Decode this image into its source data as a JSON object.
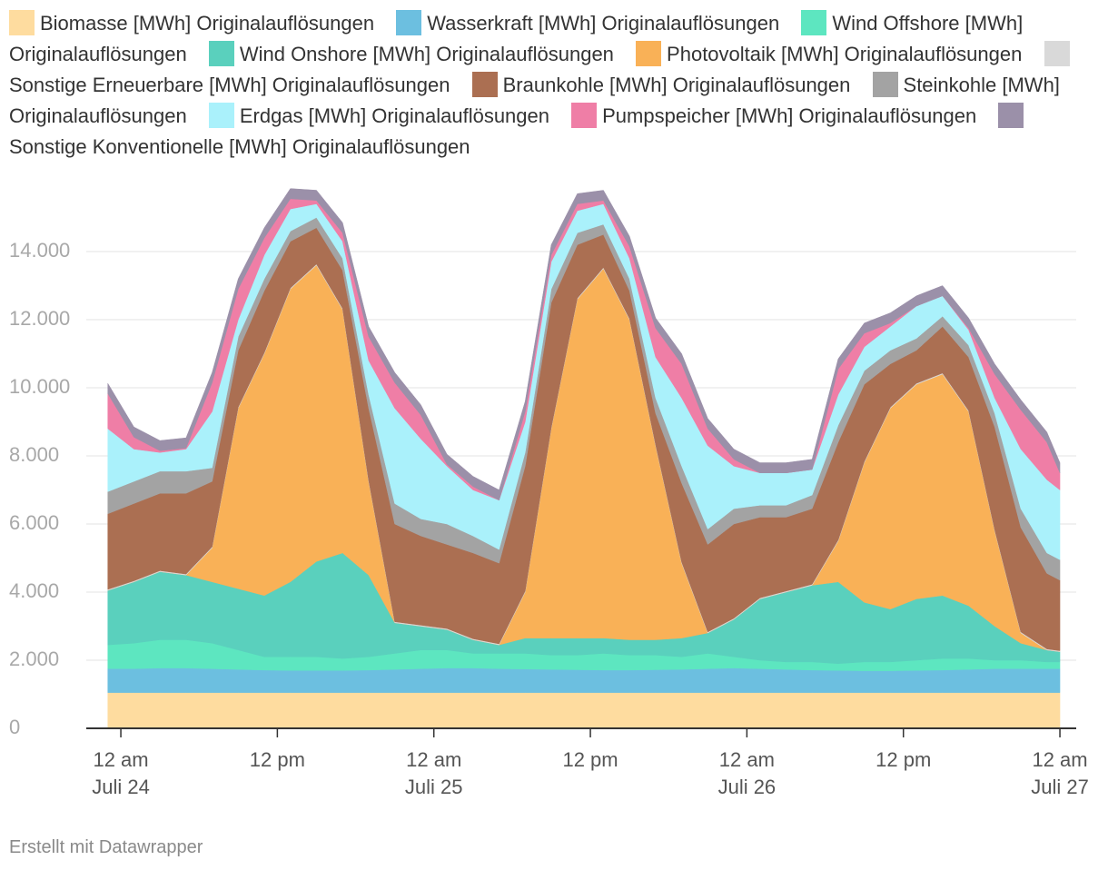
{
  "chart_data": {
    "type": "stacked_area",
    "x": [
      -1,
      1,
      3,
      5,
      7,
      9,
      11,
      13,
      15,
      17,
      19,
      21,
      23,
      25,
      27,
      29,
      31,
      33,
      35,
      37,
      39,
      41,
      43,
      45,
      47,
      49,
      51,
      53,
      55,
      57,
      59,
      61,
      63,
      65,
      67,
      69,
      71,
      72
    ],
    "xlim": [
      -2.65,
      73.25
    ],
    "xticks": [
      {
        "value": 0,
        "label": "12 am",
        "date": "Juli 24"
      },
      {
        "value": 12,
        "label": "12 pm"
      },
      {
        "value": 24,
        "label": "12 am",
        "date": "Juli 25"
      },
      {
        "value": 36,
        "label": "12 pm"
      },
      {
        "value": 48,
        "label": "12 am",
        "date": "Juli 26"
      },
      {
        "value": 60,
        "label": "12 pm"
      },
      {
        "value": 72,
        "label": "12 am",
        "date": "Juli 27"
      }
    ],
    "ylim": [
      0,
      16000
    ],
    "yticks": [
      0,
      {
        "value": 2000,
        "label": "2.000"
      },
      {
        "value": 4000,
        "label": "4.000"
      },
      {
        "value": 6000,
        "label": "6.000"
      },
      {
        "value": 8000,
        "label": "8.000"
      },
      {
        "value": 10000,
        "label": "10.000"
      },
      {
        "value": 12000,
        "label": "12.000"
      },
      {
        "value": 14000,
        "label": "14.000"
      }
    ],
    "grid": true,
    "series": [
      {
        "name": "Biomasse [MWh] Originalauflösungen",
        "color": "#fedc9f",
        "values": [
          1050,
          1050,
          1050,
          1050,
          1050,
          1050,
          1050,
          1050,
          1050,
          1050,
          1050,
          1050,
          1050,
          1050,
          1050,
          1050,
          1050,
          1050,
          1050,
          1050,
          1050,
          1050,
          1050,
          1050,
          1050,
          1050,
          1050,
          1050,
          1050,
          1050,
          1050,
          1050,
          1050,
          1050,
          1050,
          1050,
          1050,
          1050
        ]
      },
      {
        "name": "Wasserkraft [MWh] Originalauflösungen",
        "color": "#6cbfe0",
        "values": [
          700,
          700,
          720,
          720,
          700,
          680,
          660,
          650,
          650,
          650,
          660,
          680,
          700,
          720,
          720,
          700,
          690,
          680,
          670,
          660,
          660,
          670,
          680,
          700,
          720,
          700,
          680,
          660,
          650,
          640,
          640,
          650,
          660,
          680,
          700,
          700,
          700,
          700
        ]
      },
      {
        "name": "Wind Offshore [MWh] Originalauflösungen",
        "color": "#5de6c0",
        "values": [
          700,
          750,
          830,
          830,
          750,
          570,
          390,
          400,
          400,
          350,
          390,
          470,
          550,
          530,
          430,
          450,
          460,
          420,
          430,
          490,
          440,
          430,
          370,
          450,
          330,
          250,
          220,
          240,
          200,
          260,
          260,
          300,
          340,
          320,
          250,
          250,
          200,
          200
        ]
      },
      {
        "name": "Wind Onshore [MWh] Originalauflösungen",
        "color": "#5ad0bd",
        "values": [
          1600,
          1800,
          2000,
          1900,
          1800,
          1800,
          1800,
          2200,
          2800,
          3100,
          2400,
          900,
          700,
          600,
          400,
          250,
          450,
          500,
          500,
          450,
          450,
          450,
          550,
          600,
          1100,
          1800,
          2050,
          2250,
          2400,
          1750,
          1550,
          1800,
          1850,
          1550,
          1000,
          500,
          350,
          300
        ]
      },
      {
        "name": "Photovoltaik [MWh] Originalauflösungen",
        "color": "#f9b157",
        "values": [
          0,
          0,
          0,
          0,
          1000,
          5300,
          7100,
          8600,
          8700,
          7150,
          2750,
          0,
          0,
          0,
          0,
          0,
          1350,
          6150,
          9950,
          10850,
          9400,
          5700,
          2200,
          0,
          0,
          0,
          0,
          0,
          1200,
          4100,
          5900,
          6300,
          6500,
          5700,
          2800,
          300,
          0,
          0
        ]
      },
      {
        "name": "Sonstige Erneuerbare [MWh] Originalauflösungen",
        "color": "#d9d9d9",
        "values": [
          30,
          30,
          30,
          30,
          30,
          30,
          30,
          30,
          30,
          30,
          30,
          30,
          30,
          30,
          30,
          30,
          30,
          30,
          30,
          30,
          30,
          30,
          30,
          30,
          30,
          30,
          30,
          30,
          30,
          30,
          30,
          30,
          30,
          30,
          30,
          30,
          30,
          30
        ]
      },
      {
        "name": "Braunkohle [MWh] Originalauflösungen",
        "color": "#ab6f52",
        "values": [
          2220,
          2270,
          2270,
          2370,
          1920,
          1670,
          1820,
          1370,
          1070,
          1120,
          2120,
          2870,
          2620,
          2470,
          2520,
          2370,
          3670,
          3670,
          1570,
          970,
          820,
          920,
          2320,
          2570,
          2770,
          2370,
          2170,
          2220,
          2870,
          2270,
          1270,
          970,
          1370,
          1570,
          3020,
          3070,
          2220,
          2070
        ]
      },
      {
        "name": "Steinkohle [MWh] Originalauflösungen",
        "color": "#a3a3a3",
        "values": [
          650,
          650,
          650,
          650,
          400,
          400,
          350,
          300,
          300,
          350,
          400,
          600,
          500,
          600,
          500,
          400,
          400,
          400,
          350,
          300,
          350,
          450,
          500,
          450,
          450,
          350,
          350,
          400,
          500,
          400,
          400,
          350,
          300,
          350,
          400,
          550,
          600,
          600
        ]
      },
      {
        "name": "Erdgas [MWh] Originalauflösungen",
        "color": "#aaf1fb",
        "values": [
          1850,
          950,
          550,
          650,
          1650,
          500,
          700,
          650,
          400,
          500,
          1000,
          2800,
          2350,
          1700,
          1350,
          1450,
          900,
          800,
          650,
          600,
          600,
          1200,
          2000,
          2450,
          1250,
          950,
          950,
          750,
          900,
          700,
          700,
          950,
          600,
          450,
          450,
          1750,
          2150,
          2050
        ]
      },
      {
        "name": "Pumpspeicher [MWh] Originalauflösungen",
        "color": "#ef7ea6",
        "values": [
          1030,
          350,
          50,
          30,
          850,
          900,
          500,
          300,
          100,
          250,
          700,
          750,
          700,
          50,
          100,
          0,
          300,
          200,
          200,
          100,
          350,
          850,
          1000,
          500,
          200,
          0,
          0,
          0,
          750,
          400,
          100,
          0,
          0,
          50,
          700,
          1150,
          1100,
          500
        ]
      },
      {
        "name": "Sonstige Konventionelle [MWh] Originalauflösungen",
        "color": "#9b90a9",
        "values": [
          300,
          300,
          300,
          300,
          300,
          300,
          300,
          300,
          300,
          300,
          300,
          300,
          300,
          300,
          300,
          300,
          300,
          300,
          300,
          300,
          300,
          300,
          300,
          300,
          300,
          300,
          300,
          300,
          300,
          300,
          300,
          300,
          300,
          300,
          300,
          300,
          300,
          300
        ]
      }
    ],
    "footer": "Erstellt mit Datawrapper"
  }
}
